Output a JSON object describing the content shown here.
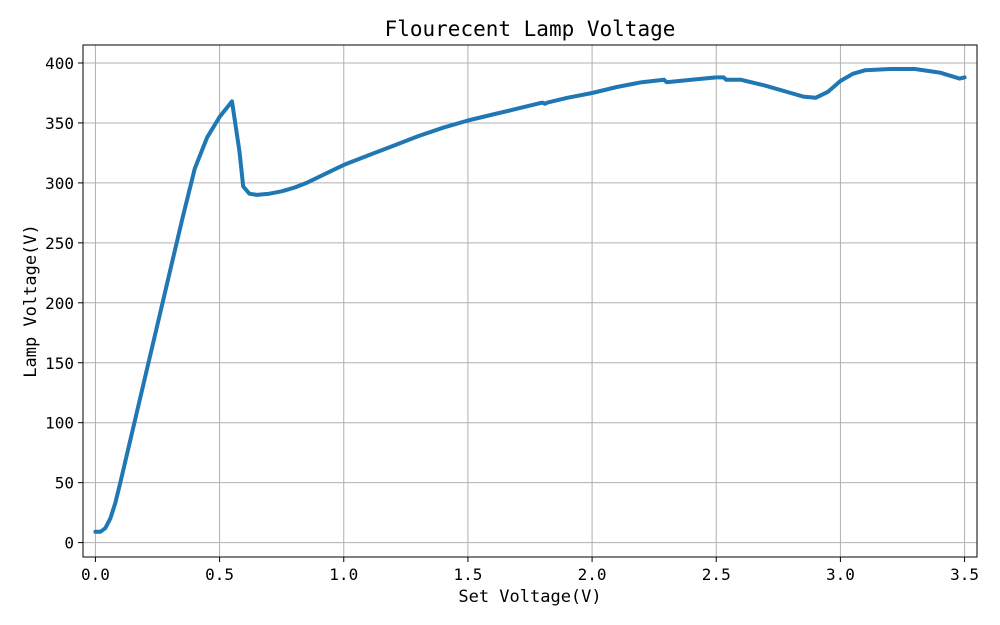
{
  "chart_data": {
    "type": "line",
    "title": "Flourecent Lamp Voltage",
    "xlabel": "Set Voltage(V)",
    "ylabel": "Lamp Voltage(V)",
    "xlim": [
      -0.05,
      3.55
    ],
    "ylim": [
      -12,
      415
    ],
    "xticks": [
      0.0,
      0.5,
      1.0,
      1.5,
      2.0,
      2.5,
      3.0,
      3.5
    ],
    "xtick_labels": [
      "0.0",
      "0.5",
      "1.0",
      "1.5",
      "2.0",
      "2.5",
      "3.0",
      "3.5"
    ],
    "yticks": [
      0,
      50,
      100,
      150,
      200,
      250,
      300,
      350,
      400
    ],
    "ytick_labels": [
      "0",
      "50",
      "100",
      "150",
      "200",
      "250",
      "300",
      "350",
      "400"
    ],
    "grid": true,
    "series_color": "#1f77b4",
    "series": [
      {
        "x": [
          0.0,
          0.02,
          0.04,
          0.06,
          0.08,
          0.1,
          0.15,
          0.2,
          0.25,
          0.3,
          0.35,
          0.4,
          0.45,
          0.5,
          0.55,
          0.58,
          0.595,
          0.62,
          0.65,
          0.7,
          0.75,
          0.8,
          0.85,
          0.9,
          0.95,
          1.0,
          1.1,
          1.2,
          1.3,
          1.4,
          1.5,
          1.6,
          1.7,
          1.8,
          1.81,
          1.82,
          1.9,
          2.0,
          2.1,
          2.2,
          2.29,
          2.3,
          2.4,
          2.5,
          2.53,
          2.54,
          2.6,
          2.7,
          2.8,
          2.85,
          2.9,
          2.95,
          3.0,
          3.05,
          3.1,
          3.2,
          3.3,
          3.4,
          3.48,
          3.5
        ],
        "y": [
          9,
          9,
          12,
          20,
          33,
          50,
          94,
          138,
          182,
          226,
          270,
          312,
          338,
          355,
          368,
          326,
          297,
          291,
          290,
          291,
          293,
          296,
          300,
          305,
          310,
          315,
          323,
          331,
          339,
          346,
          352,
          357,
          362,
          367,
          366,
          367,
          371,
          375,
          380,
          384,
          386,
          384,
          386,
          388,
          388,
          386,
          386,
          381,
          375,
          372,
          371,
          376,
          385,
          391,
          394,
          395,
          395,
          392,
          387,
          388
        ]
      }
    ]
  }
}
